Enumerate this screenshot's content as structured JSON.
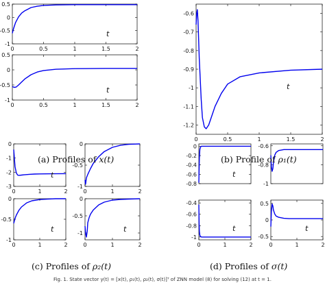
{
  "captions": [
    {
      "tag": "(a)",
      "text": "Profiles of",
      "var": "x(t)"
    },
    {
      "tag": "(b)",
      "text": "Profile of",
      "var": "ρ₁(t)"
    },
    {
      "tag": "(c)",
      "text": "Profiles of",
      "var": "ρ₂(t)"
    },
    {
      "tag": "(d)",
      "text": "Profiles of",
      "var": "σ(t)"
    }
  ],
  "footer": "Fig. 1.  State vector y(t) = [x(t), ρ₁(t), ρ₂(t), σ(t)]ᵀ of ZNN model (8) for solving (12) at t = 1.",
  "colors": {
    "line": "#0000ee",
    "axis": "#000000"
  },
  "chart_data": [
    {
      "id": "a1",
      "type": "line",
      "xlabel": "t",
      "xlim": [
        0,
        2
      ],
      "ylim": [
        -1,
        0.5
      ],
      "xticks": [
        {
          "v": 0,
          "label": "0"
        },
        {
          "v": 0.5,
          "label": "0.5"
        },
        {
          "v": 1,
          "label": "1"
        },
        {
          "v": 1.5,
          "label": "1.5"
        },
        {
          "v": 2,
          "label": "2"
        }
      ],
      "yticks": [
        {
          "v": -1,
          "label": "-1"
        },
        {
          "v": -0.5,
          "label": "-0.5"
        },
        {
          "v": 0,
          "label": "0"
        },
        {
          "v": 0.5,
          "label": "0.5"
        }
      ],
      "x": [
        0,
        0.02,
        0.05,
        0.1,
        0.15,
        0.2,
        0.3,
        0.4,
        0.5,
        0.7,
        1.0,
        1.5,
        2.0
      ],
      "y": [
        -0.6,
        -0.42,
        -0.2,
        0.02,
        0.16,
        0.25,
        0.37,
        0.42,
        0.45,
        0.47,
        0.48,
        0.48,
        0.48
      ]
    },
    {
      "id": "a2",
      "type": "line",
      "xlabel": "t",
      "xlim": [
        0,
        2
      ],
      "ylim": [
        -1,
        0.5
      ],
      "xticks": [
        {
          "v": 0,
          "label": "0"
        },
        {
          "v": 0.5,
          "label": "0.5"
        },
        {
          "v": 1,
          "label": "1"
        },
        {
          "v": 1.5,
          "label": "1.5"
        },
        {
          "v": 2,
          "label": "2"
        }
      ],
      "yticks": [
        {
          "v": -1,
          "label": "-1"
        },
        {
          "v": -0.5,
          "label": "-0.5"
        },
        {
          "v": 0,
          "label": "0"
        },
        {
          "v": 0.5,
          "label": "0.5"
        }
      ],
      "x": [
        0,
        0.03,
        0.06,
        0.1,
        0.15,
        0.2,
        0.3,
        0.4,
        0.5,
        0.7,
        1.0,
        1.5,
        2.0
      ],
      "y": [
        -0.55,
        -0.58,
        -0.57,
        -0.5,
        -0.4,
        -0.3,
        -0.16,
        -0.07,
        -0.02,
        0.02,
        0.04,
        0.05,
        0.05
      ]
    },
    {
      "id": "b",
      "type": "line",
      "xlabel": "t",
      "xlim": [
        0,
        2
      ],
      "ylim": [
        -1.25,
        -0.55
      ],
      "xticks": [
        {
          "v": 0,
          "label": "0"
        },
        {
          "v": 0.5,
          "label": "0.5"
        },
        {
          "v": 1,
          "label": "1"
        },
        {
          "v": 1.5,
          "label": "1.5"
        },
        {
          "v": 2,
          "label": "2"
        }
      ],
      "yticks": [
        {
          "v": -1.2,
          "label": "-1.2"
        },
        {
          "v": -1.1,
          "label": "-1.1"
        },
        {
          "v": -1,
          "label": "-1"
        },
        {
          "v": -0.9,
          "label": "-0.9"
        },
        {
          "v": -0.8,
          "label": "-0.8"
        },
        {
          "v": -0.7,
          "label": "-0.7"
        },
        {
          "v": -0.6,
          "label": "-0.6"
        }
      ],
      "x": [
        0,
        0.01,
        0.02,
        0.03,
        0.05,
        0.08,
        0.1,
        0.13,
        0.16,
        0.2,
        0.25,
        0.3,
        0.4,
        0.5,
        0.7,
        1.0,
        1.5,
        2.0
      ],
      "y": [
        -0.66,
        -0.6,
        -0.58,
        -0.64,
        -0.84,
        -1.06,
        -1.16,
        -1.21,
        -1.22,
        -1.2,
        -1.15,
        -1.1,
        -1.03,
        -0.98,
        -0.94,
        -0.92,
        -0.905,
        -0.9
      ]
    },
    {
      "id": "c1",
      "type": "line",
      "xlabel": "t",
      "xlim": [
        0,
        2
      ],
      "ylim": [
        -3,
        0
      ],
      "xticks": [
        {
          "v": 0,
          "label": "0"
        },
        {
          "v": 1,
          "label": "1"
        },
        {
          "v": 2,
          "label": "2"
        }
      ],
      "yticks": [
        {
          "v": -3,
          "label": "-3"
        },
        {
          "v": -2,
          "label": "-2"
        },
        {
          "v": -1,
          "label": "-1"
        },
        {
          "v": 0,
          "label": "0"
        }
      ],
      "x": [
        0,
        0.02,
        0.05,
        0.1,
        0.15,
        0.2,
        0.3,
        0.4,
        0.6,
        0.8,
        1.0,
        1.5,
        2.0
      ],
      "y": [
        -0.4,
        -0.9,
        -1.6,
        -2.05,
        -2.2,
        -2.22,
        -2.2,
        -2.18,
        -2.15,
        -2.13,
        -2.12,
        -2.11,
        -2.1
      ]
    },
    {
      "id": "c2",
      "type": "line",
      "xlabel": "",
      "xlim": [
        0,
        2
      ],
      "ylim": [
        -1,
        0
      ],
      "xticks": [
        {
          "v": 0,
          "label": "0"
        },
        {
          "v": 1,
          "label": "1"
        },
        {
          "v": 2,
          "label": "2"
        }
      ],
      "yticks": [
        {
          "v": -1,
          "label": "-1"
        },
        {
          "v": -0.5,
          "label": "-0.5"
        },
        {
          "v": 0,
          "label": "0"
        }
      ],
      "x": [
        0,
        0.02,
        0.05,
        0.1,
        0.2,
        0.3,
        0.5,
        0.7,
        1.0,
        1.3,
        1.6,
        2.0
      ],
      "y": [
        -0.85,
        -0.95,
        -0.8,
        -0.72,
        -0.58,
        -0.46,
        -0.3,
        -0.18,
        -0.08,
        -0.03,
        -0.01,
        0.0
      ]
    },
    {
      "id": "c3",
      "type": "line",
      "xlabel": "t",
      "xlim": [
        0,
        2
      ],
      "ylim": [
        -1,
        0
      ],
      "xticks": [
        {
          "v": 0,
          "label": "0"
        },
        {
          "v": 1,
          "label": "1"
        },
        {
          "v": 2,
          "label": "2"
        }
      ],
      "yticks": [
        {
          "v": -1,
          "label": "-1"
        },
        {
          "v": -0.5,
          "label": "-0.5"
        },
        {
          "v": 0,
          "label": "0"
        }
      ],
      "x": [
        0,
        0.05,
        0.1,
        0.2,
        0.3,
        0.5,
        0.7,
        1.0,
        1.3,
        1.6,
        2.0
      ],
      "y": [
        -0.6,
        -0.48,
        -0.4,
        -0.28,
        -0.2,
        -0.1,
        -0.05,
        -0.02,
        -0.01,
        0.0,
        0.0
      ]
    },
    {
      "id": "c4",
      "type": "line",
      "xlabel": "t",
      "xlim": [
        0,
        2
      ],
      "ylim": [
        -1.2,
        0
      ],
      "xticks": [
        {
          "v": 0,
          "label": "0"
        },
        {
          "v": 1,
          "label": "1"
        },
        {
          "v": 2,
          "label": "2"
        }
      ],
      "yticks": [
        {
          "v": -1,
          "label": "-1"
        },
        {
          "v": -0.5,
          "label": "-0.5"
        },
        {
          "v": 0,
          "label": "0"
        }
      ],
      "x": [
        0,
        0.02,
        0.05,
        0.08,
        0.1,
        0.15,
        0.2,
        0.3,
        0.5,
        0.7,
        1.0,
        1.3,
        1.6,
        2.0
      ],
      "y": [
        -0.8,
        -1.0,
        -1.12,
        -0.95,
        -0.7,
        -0.55,
        -0.45,
        -0.33,
        -0.18,
        -0.1,
        -0.04,
        -0.02,
        -0.01,
        0.0
      ]
    },
    {
      "id": "d1",
      "type": "line",
      "xlabel": "t",
      "xlim": [
        0,
        2
      ],
      "ylim": [
        -0.8,
        0.05
      ],
      "xticks": [],
      "yticks": [
        {
          "v": -0.8,
          "label": "-0.8"
        },
        {
          "v": -0.6,
          "label": "-0.6"
        },
        {
          "v": -0.4,
          "label": "-0.4"
        },
        {
          "v": -0.2,
          "label": "-0.2"
        },
        {
          "v": 0,
          "label": "0"
        }
      ],
      "x": [
        0,
        0.01,
        0.02,
        0.04,
        0.06,
        0.1,
        0.2,
        0.5,
        1.0,
        2.0
      ],
      "y": [
        -0.78,
        -0.5,
        -0.25,
        -0.07,
        -0.02,
        0.0,
        0.0,
        0.0,
        0.0,
        0.0
      ]
    },
    {
      "id": "d2",
      "type": "line",
      "xlabel": "",
      "xlim": [
        0,
        2
      ],
      "ylim": [
        -1,
        -0.58
      ],
      "xticks": [],
      "yticks": [
        {
          "v": -1,
          "label": "-1"
        },
        {
          "v": -0.8,
          "label": "-0.8"
        },
        {
          "v": -0.6,
          "label": "-0.6"
        }
      ],
      "x": [
        0,
        0.02,
        0.05,
        0.08,
        0.1,
        0.15,
        0.2,
        0.3,
        0.5,
        0.7,
        1.0,
        1.5,
        2.0
      ],
      "y": [
        -0.7,
        -0.82,
        -0.87,
        -0.84,
        -0.78,
        -0.7,
        -0.67,
        -0.65,
        -0.64,
        -0.64,
        -0.64,
        -0.64,
        -0.64
      ]
    },
    {
      "id": "d3",
      "type": "line",
      "xlabel": "t",
      "xlim": [
        0,
        2
      ],
      "ylim": [
        -1.05,
        -0.35
      ],
      "xticks": [
        {
          "v": 0,
          "label": "0"
        },
        {
          "v": 1,
          "label": "1"
        },
        {
          "v": 2,
          "label": "2"
        }
      ],
      "yticks": [
        {
          "v": -1,
          "label": "-1"
        },
        {
          "v": -0.8,
          "label": "-0.8"
        },
        {
          "v": -0.6,
          "label": "-0.6"
        },
        {
          "v": -0.4,
          "label": "-0.4"
        }
      ],
      "x": [
        0,
        0.01,
        0.02,
        0.04,
        0.06,
        0.1,
        0.2,
        0.5,
        1.0,
        2.0
      ],
      "y": [
        -0.43,
        -0.75,
        -0.9,
        -0.97,
        -0.99,
        -1.0,
        -1.0,
        -1.0,
        -1.0,
        -1.0
      ]
    },
    {
      "id": "d4",
      "type": "line",
      "xlabel": "t",
      "xlim": [
        0,
        2
      ],
      "ylim": [
        -0.6,
        0.6
      ],
      "xticks": [
        {
          "v": 0,
          "label": "0"
        },
        {
          "v": 1,
          "label": "1"
        },
        {
          "v": 2,
          "label": "2"
        }
      ],
      "yticks": [
        {
          "v": -0.5,
          "label": "-0.5"
        },
        {
          "v": 0,
          "label": "0"
        },
        {
          "v": 0.5,
          "label": "0.5"
        }
      ],
      "x": [
        0,
        0.02,
        0.05,
        0.08,
        0.1,
        0.15,
        0.2,
        0.3,
        0.5,
        0.7,
        1.0,
        1.5,
        2.0
      ],
      "y": [
        -0.2,
        0.25,
        0.48,
        0.42,
        0.3,
        0.18,
        0.12,
        0.08,
        0.05,
        0.04,
        0.04,
        0.04,
        0.04
      ]
    }
  ]
}
